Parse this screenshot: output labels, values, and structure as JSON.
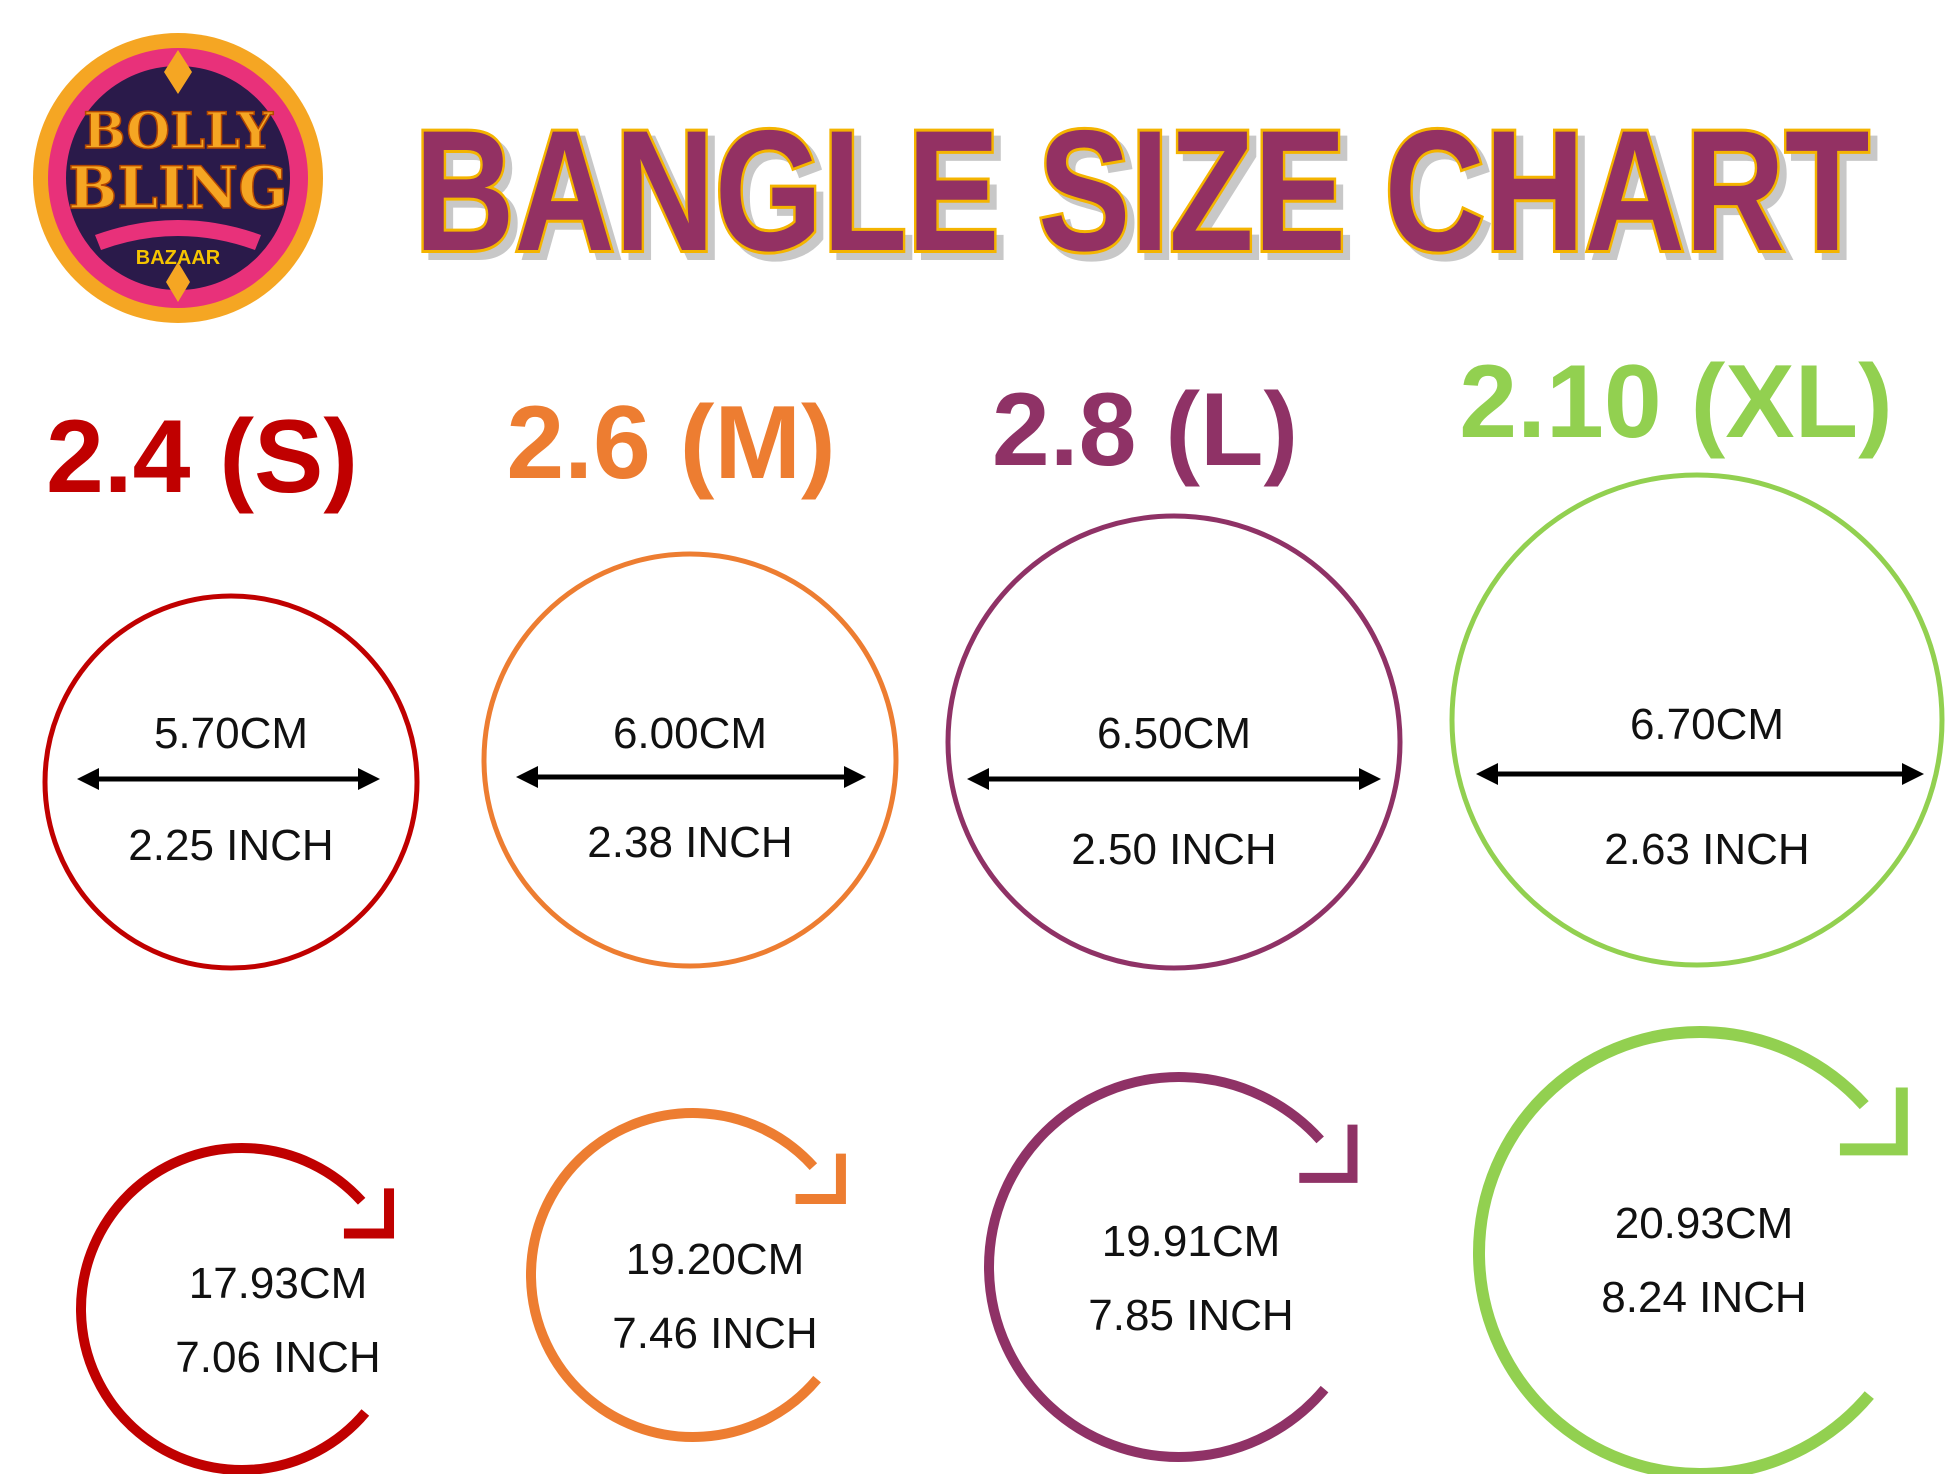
{
  "logo": {
    "line1": "BOLLY",
    "line2": "BLING",
    "line3": "BAZAAR"
  },
  "title": "BANGLE SIZE CHART",
  "colors": {
    "title_fill": "#933163",
    "title_stroke": "#f4b400",
    "arrow": "#000000"
  },
  "sizes": [
    {
      "label": "2.4 (S)",
      "color": "#c00000",
      "diameter_cm": "5.70CM",
      "diameter_inch": "2.25 INCH",
      "circumference_cm": "17.93CM",
      "circumference_inch": "7.06 INCH"
    },
    {
      "label": "2.6 (M)",
      "color": "#ed7d31",
      "diameter_cm": "6.00CM",
      "diameter_inch": "2.38 INCH",
      "circumference_cm": "19.20CM",
      "circumference_inch": "7.46 INCH"
    },
    {
      "label": "2.8 (L)",
      "color": "#8f3266",
      "diameter_cm": "6.50CM",
      "diameter_inch": "2.50 INCH",
      "circumference_cm": "19.91CM",
      "circumference_inch": "7.85 INCH"
    },
    {
      "label": "2.10 (XL)",
      "color": "#92d050",
      "diameter_cm": "6.70CM",
      "diameter_inch": "2.63 INCH",
      "circumference_cm": "20.93CM",
      "circumference_inch": "8.24 INCH"
    }
  ]
}
